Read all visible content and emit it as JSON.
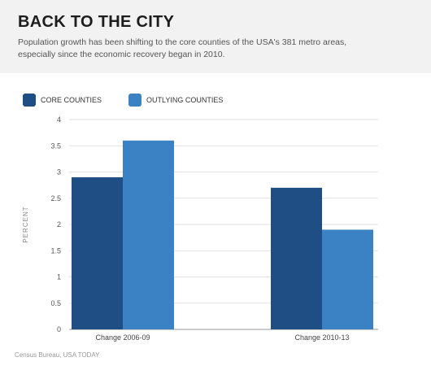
{
  "header": {
    "title": "BACK TO THE CITY",
    "subtitle": "Population growth has been shifting to the core counties of the USA's 381 metro areas, especially since the economic recovery began in 2010."
  },
  "source": "Census Bureau, USA TODAY",
  "chart_data": {
    "type": "bar",
    "categories": [
      "Change 2006-09",
      "Change 2010-13"
    ],
    "series": [
      {
        "name": "CORE COUNTIES",
        "color": "#1f4e85",
        "values": [
          2.9,
          2.7
        ]
      },
      {
        "name": "OUTLYING COUNTIES",
        "color": "#3a82c4",
        "values": [
          3.6,
          1.9
        ]
      }
    ],
    "ylabel": "PERCENT",
    "ylim": [
      0,
      4
    ],
    "yticks": [
      "0",
      "0.5",
      "1",
      "1.5",
      "2",
      "2.5",
      "3",
      "3.5",
      "4"
    ],
    "grid": true,
    "legend": "top-left"
  }
}
